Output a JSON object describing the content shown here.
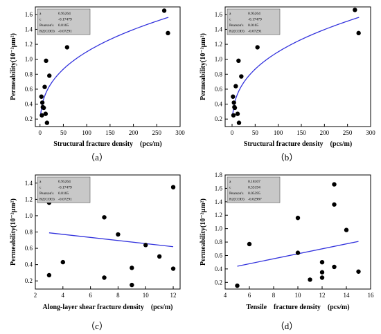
{
  "figure": {
    "panels": [
      {
        "id": "a",
        "caption": "（a）"
      },
      {
        "id": "b",
        "caption": "（b）"
      },
      {
        "id": "c",
        "caption": "（c）"
      },
      {
        "id": "d",
        "caption": "（d）"
      }
    ]
  },
  "style": {
    "point_color": "#000000",
    "curve_color": "#3333dd",
    "stats_box_fill": "#c8c8c8",
    "axis_color": "#000000"
  },
  "chart_data": [
    {
      "id": "a",
      "type": "scatter",
      "xlabel": "Structural fracture density　(pcs/m)",
      "ylabel": "Permeability(10⁻²μm²)",
      "xlim": [
        -10,
        300
      ],
      "ylim": [
        0.1,
        1.7
      ],
      "xticks": [
        0,
        50,
        100,
        150,
        200,
        250,
        300
      ],
      "yticks": [
        0.2,
        0.4,
        0.6,
        0.8,
        1.0,
        1.2,
        1.4,
        1.6
      ],
      "ytick_labels": [
        "0.2",
        "0.4",
        "0.6",
        "0.8",
        "1.0",
        "1.2",
        "1.4",
        "1.6"
      ],
      "grid": false,
      "stats": [
        [
          "a",
          "0.95264"
        ],
        [
          "c",
          "-0.17479"
        ],
        [
          "Pearson's",
          "0.0165"
        ],
        [
          "R2(COD)",
          "-0.07291"
        ]
      ],
      "points": [
        [
          3,
          0.5
        ],
        [
          4,
          0.25
        ],
        [
          5,
          0.42
        ],
        [
          6,
          0.36
        ],
        [
          8,
          0.35
        ],
        [
          10,
          0.63
        ],
        [
          12,
          0.27
        ],
        [
          13,
          0.98
        ],
        [
          15,
          0.15
        ],
        [
          20,
          0.78
        ],
        [
          58,
          1.16
        ],
        [
          266,
          1.65
        ],
        [
          274,
          1.35
        ]
      ],
      "fit": {
        "form": "power",
        "a": 0.2,
        "b": 0.36,
        "c": 0.05,
        "x_start": 1,
        "x_end": 275
      }
    },
    {
      "id": "b",
      "type": "scatter",
      "xlabel": "Structural fracture density　(pcs/m)",
      "ylabel": "Permeability(10⁻²μm²)",
      "xlim": [
        -15,
        300
      ],
      "ylim": [
        0.1,
        1.7
      ],
      "xticks": [
        0,
        50,
        100,
        150,
        200,
        250,
        300
      ],
      "yticks": [
        0.2,
        0.4,
        0.6,
        0.8,
        1.0,
        1.2,
        1.4,
        1.6
      ],
      "ytick_labels": [
        "0.2",
        "0.4",
        "0.6",
        "0.8",
        "1.0",
        "1.2",
        "1.4",
        "1.6"
      ],
      "grid": false,
      "stats": [
        [
          "a",
          "0.95264"
        ],
        [
          "c",
          "-0.17479"
        ],
        [
          "Pearson's",
          "0.0165"
        ],
        [
          "R2(COD)",
          "-0.07291"
        ]
      ],
      "points": [
        [
          2,
          0.5
        ],
        [
          3,
          0.25
        ],
        [
          4,
          0.42
        ],
        [
          5,
          0.36
        ],
        [
          6,
          0.35
        ],
        [
          8,
          0.64
        ],
        [
          12,
          0.27
        ],
        [
          14,
          0.98
        ],
        [
          15,
          0.15
        ],
        [
          20,
          0.77
        ],
        [
          55,
          1.16
        ],
        [
          266,
          1.66
        ],
        [
          274,
          1.35
        ]
      ],
      "fit": {
        "form": "power",
        "a": 0.2,
        "b": 0.36,
        "c": 0.05,
        "x_start": 1,
        "x_end": 275
      }
    },
    {
      "id": "c",
      "type": "scatter",
      "xlabel": "Along-layer shear fracture density　(pcs/m)",
      "ylabel": "Permeability(10⁻²μm²)",
      "xlim": [
        2,
        12.5
      ],
      "ylim": [
        0.1,
        1.5
      ],
      "xticks": [
        2,
        4,
        6,
        8,
        10,
        12
      ],
      "yticks": [
        0.2,
        0.4,
        0.6,
        0.8,
        1.0,
        1.2,
        1.4
      ],
      "ytick_labels": [
        "0.2",
        "0.4",
        "0.6",
        "0.8",
        "1.0",
        "1.2",
        "1.4"
      ],
      "grid": false,
      "stats": [
        [
          "a",
          "0.95264"
        ],
        [
          "c",
          "-0.17479"
        ],
        [
          "Pearson's",
          "0.0165"
        ],
        [
          "R2(COD)",
          "-0.07291"
        ]
      ],
      "points": [
        [
          3,
          1.16
        ],
        [
          3,
          0.27
        ],
        [
          4,
          0.43
        ],
        [
          7,
          0.98
        ],
        [
          7,
          0.24
        ],
        [
          8,
          0.77
        ],
        [
          9,
          0.36
        ],
        [
          9,
          0.15
        ],
        [
          10,
          0.64
        ],
        [
          11,
          0.5
        ],
        [
          12,
          1.35
        ],
        [
          12,
          0.35
        ]
      ],
      "fit": {
        "form": "linear",
        "y_start": 0.79,
        "y_end": 0.62,
        "x_start": 3,
        "x_end": 12
      }
    },
    {
      "id": "d",
      "type": "scatter",
      "xlabel": "Tensile　fracture density　(pcs/m)",
      "ylabel": "Permeability(10⁻²μm²)",
      "xlim": [
        4,
        16
      ],
      "ylim": [
        0.1,
        1.8
      ],
      "xticks": [
        4,
        6,
        8,
        10,
        12,
        14,
        16
      ],
      "yticks": [
        0.2,
        0.4,
        0.6,
        0.8,
        1.0,
        1.2,
        1.4,
        1.6,
        1.8
      ],
      "ytick_labels": [
        "0.2",
        "0.4",
        "0.6",
        "0.8",
        "1.0",
        "1.2",
        "1.4",
        "1.6",
        "1.8"
      ],
      "grid": false,
      "stats": [
        [
          "a",
          "0.18107"
        ],
        [
          "c",
          "0.55194"
        ],
        [
          "Pearson's",
          "0.05395"
        ],
        [
          "R2(COD)",
          "-0.02987"
        ]
      ],
      "points": [
        [
          5,
          0.15
        ],
        [
          6,
          0.77
        ],
        [
          10,
          1.16
        ],
        [
          10,
          0.64
        ],
        [
          11,
          0.24
        ],
        [
          12,
          0.5
        ],
        [
          12,
          0.35
        ],
        [
          12,
          0.27
        ],
        [
          13,
          1.66
        ],
        [
          13,
          1.36
        ],
        [
          13,
          0.43
        ],
        [
          14,
          0.98
        ],
        [
          15,
          0.36
        ]
      ],
      "fit": {
        "form": "linear",
        "y_start": 0.44,
        "y_end": 0.81,
        "x_start": 5,
        "x_end": 15
      }
    }
  ]
}
